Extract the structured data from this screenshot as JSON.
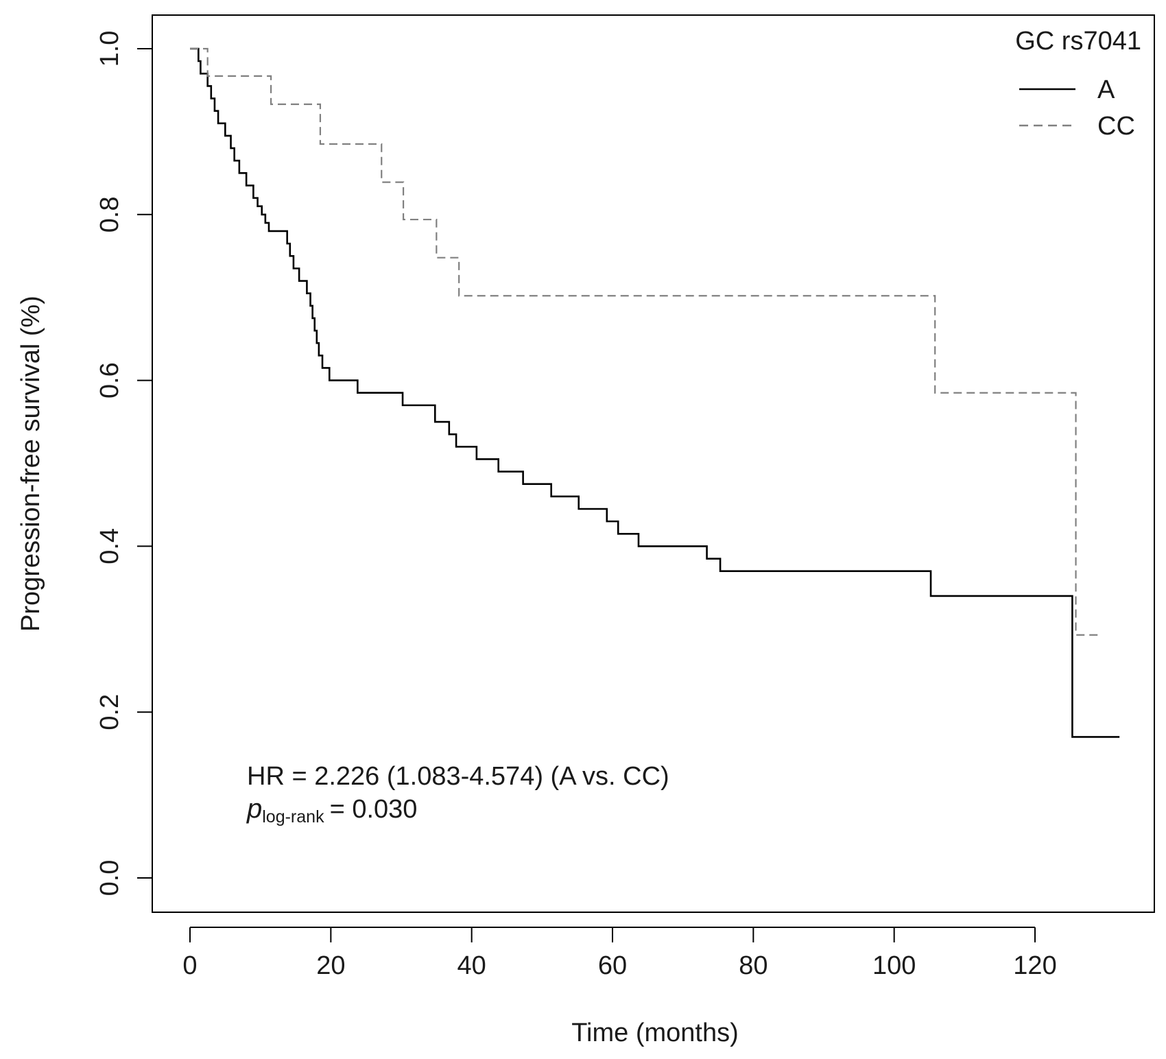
{
  "chart_data": {
    "type": "line",
    "subtype": "kaplan-meier step",
    "xlabel": "Time (months)",
    "ylabel": "Progression-free survival (%)",
    "xlim": [
      0,
      135
    ],
    "ylim": [
      0,
      1
    ],
    "xticks": [
      0,
      20,
      40,
      60,
      80,
      100,
      120
    ],
    "yticks": [
      0.0,
      0.2,
      0.4,
      0.6,
      0.8,
      1.0
    ],
    "xtick_labels": [
      "0",
      "20",
      "40",
      "60",
      "80",
      "100",
      "120"
    ],
    "ytick_labels": [
      "0.0",
      "0.2",
      "0.4",
      "0.6",
      "0.8",
      "1.0"
    ],
    "legend": {
      "title": "GC rs7041",
      "position": "top-right"
    },
    "annotation": {
      "hr_text": "HR = 2.226 (1.083-4.574) (A vs. CC)",
      "p_symbol": "p",
      "p_subscript": "log-rank",
      "p_value_text": "= 0.030"
    },
    "series": [
      {
        "name": "A",
        "style": "solid",
        "color": "#000000",
        "x": [
          0,
          1.2,
          1.5,
          2.5,
          3.0,
          3.5,
          4.0,
          5.0,
          5.8,
          6.3,
          7.0,
          8.0,
          9.0,
          9.6,
          10.2,
          10.7,
          11.2,
          13.8,
          14.2,
          14.7,
          15.5,
          16.6,
          17.1,
          17.4,
          17.7,
          18.0,
          18.3,
          18.8,
          19.8,
          23.8,
          30.2,
          34.8,
          36.8,
          37.8,
          40.7,
          43.8,
          47.3,
          51.3,
          55.2,
          59.2,
          60.8,
          63.7,
          73.4,
          75.3,
          105.2,
          125.3,
          132.0
        ],
        "y": [
          1.0,
          0.985,
          0.97,
          0.955,
          0.94,
          0.925,
          0.91,
          0.895,
          0.88,
          0.865,
          0.85,
          0.835,
          0.82,
          0.81,
          0.8,
          0.79,
          0.78,
          0.765,
          0.75,
          0.735,
          0.72,
          0.705,
          0.69,
          0.675,
          0.66,
          0.645,
          0.63,
          0.615,
          0.6,
          0.585,
          0.57,
          0.55,
          0.535,
          0.52,
          0.505,
          0.49,
          0.475,
          0.46,
          0.445,
          0.43,
          0.415,
          0.4,
          0.385,
          0.37,
          0.34,
          0.17,
          0.17
        ]
      },
      {
        "name": "CC",
        "style": "dashed",
        "color": "#808080",
        "x": [
          0,
          2.5,
          11.5,
          18.5,
          27.2,
          30.3,
          35.0,
          38.2,
          105.8,
          125.8,
          129.0
        ],
        "y": [
          1.0,
          0.967,
          0.933,
          0.885,
          0.839,
          0.794,
          0.748,
          0.702,
          0.585,
          0.293,
          0.293
        ]
      }
    ]
  }
}
